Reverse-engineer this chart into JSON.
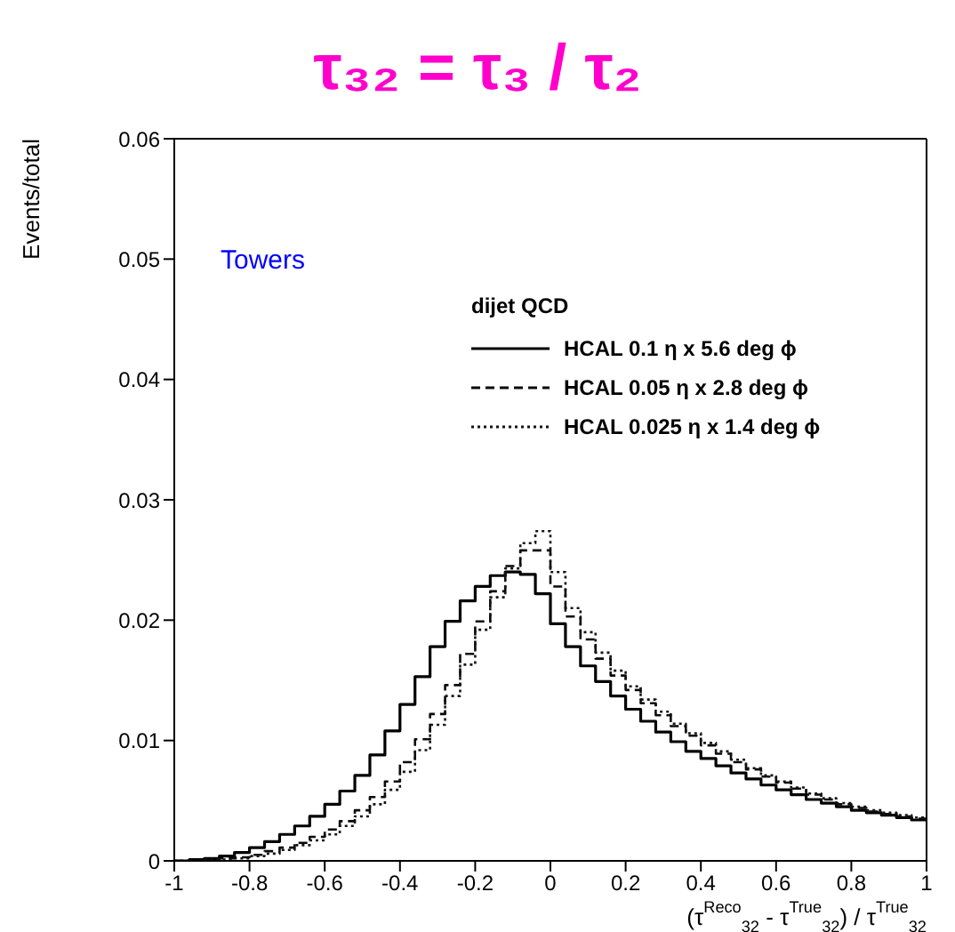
{
  "chart_data": {
    "type": "histogram",
    "title": "τ₃₂ = τ₃ / τ₂",
    "xlabel": "(τ$^{Reco}$$_{32}$ - τ$^{True}$$_{32}$) / τ$^{True}$$_{32}$",
    "ylabel": "Events/total",
    "legend_title": "dijet QCD",
    "annotations": [
      "Towers"
    ],
    "bins": [
      -1,
      -0.96,
      -0.92,
      -0.88,
      -0.84,
      -0.8,
      -0.76,
      -0.72,
      -0.68,
      -0.64,
      -0.6,
      -0.56,
      -0.52,
      -0.48,
      -0.44,
      -0.4,
      -0.36,
      -0.32,
      -0.28,
      -0.24,
      -0.2,
      -0.16,
      -0.12,
      -0.08,
      -0.04,
      0,
      0.04,
      0.08,
      0.12,
      0.16,
      0.2,
      0.24,
      0.28,
      0.32,
      0.36,
      0.4,
      0.44,
      0.48,
      0.52,
      0.56,
      0.6,
      0.64,
      0.68,
      0.72,
      0.76,
      0.8,
      0.84,
      0.88,
      0.92,
      0.96,
      1
    ],
    "series": [
      {
        "name": "HCAL 0.1 η x 5.6 deg ϕ",
        "color": "#000000",
        "line_style": "solid",
        "values": [
          0,
          0.0001,
          0.0002,
          0.0004,
          0.0007,
          0.0011,
          0.0016,
          0.0022,
          0.0029,
          0.0037,
          0.0047,
          0.0058,
          0.0071,
          0.0088,
          0.0108,
          0.013,
          0.0153,
          0.0178,
          0.0199,
          0.0216,
          0.0228,
          0.0237,
          0.024,
          0.0238,
          0.0222,
          0.0197,
          0.0178,
          0.0162,
          0.0149,
          0.0137,
          0.0126,
          0.0116,
          0.0107,
          0.0099,
          0.0091,
          0.0085,
          0.0079,
          0.0073,
          0.0068,
          0.0063,
          0.0059,
          0.0055,
          0.0051,
          0.0048,
          0.0045,
          0.0042,
          0.004,
          0.0038,
          0.0036,
          0.0034
        ]
      },
      {
        "name": "HCAL 0.05 η x 2.8 deg  ϕ",
        "color": "#0a0a0a",
        "line_style": "dashed",
        "values": [
          0,
          0,
          0.0001,
          0.0002,
          0.0003,
          0.0005,
          0.0008,
          0.0011,
          0.0015,
          0.002,
          0.0026,
          0.0033,
          0.0042,
          0.0053,
          0.0066,
          0.0082,
          0.0101,
          0.0122,
          0.0146,
          0.0172,
          0.0199,
          0.0224,
          0.0245,
          0.0258,
          0.0258,
          0.0228,
          0.0203,
          0.0184,
          0.0168,
          0.0154,
          0.0142,
          0.0131,
          0.0121,
          0.0112,
          0.0104,
          0.0096,
          0.0089,
          0.0082,
          0.0076,
          0.007,
          0.0065,
          0.006,
          0.0055,
          0.0051,
          0.0047,
          0.0044,
          0.0041,
          0.0039,
          0.0037,
          0.0035
        ]
      },
      {
        "name": "HCAL 0.025 η x 1.4 deg  ϕ",
        "color": "#141414",
        "line_style": "dotted",
        "values": [
          0,
          0,
          0.0001,
          0.0001,
          0.0002,
          0.0004,
          0.0006,
          0.0009,
          0.0013,
          0.0017,
          0.0022,
          0.0029,
          0.0037,
          0.0047,
          0.0059,
          0.0074,
          0.0092,
          0.0113,
          0.0137,
          0.0163,
          0.0192,
          0.0219,
          0.0243,
          0.0264,
          0.0274,
          0.024,
          0.021,
          0.019,
          0.0173,
          0.0158,
          0.0145,
          0.0134,
          0.0124,
          0.0114,
          0.0106,
          0.0098,
          0.0091,
          0.0084,
          0.0077,
          0.0071,
          0.0066,
          0.0061,
          0.0056,
          0.0052,
          0.0048,
          0.0045,
          0.0042,
          0.004,
          0.0038,
          0.0036
        ]
      }
    ],
    "xlim": [
      -1,
      1
    ],
    "xticks": [
      -1,
      -0.8,
      -0.6,
      -0.4,
      -0.2,
      0,
      0.2,
      0.4,
      0.6,
      0.8,
      1
    ],
    "ylim": [
      0,
      0.06
    ],
    "yticks": [
      0,
      0.01,
      0.02,
      0.03,
      0.04,
      0.05,
      0.06
    ],
    "grid": false,
    "legend": "top right"
  }
}
